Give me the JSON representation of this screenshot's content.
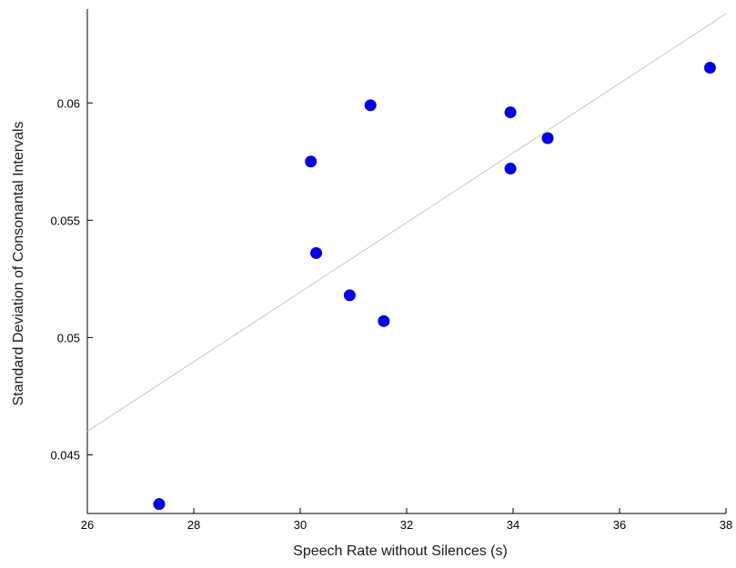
{
  "chart_data": {
    "type": "scatter",
    "title": "",
    "xlabel": "Speech Rate without Silences (s)",
    "ylabel": "Standard Deviation of Consonantal Intervals",
    "xlim": [
      26,
      38
    ],
    "ylim": [
      0.0425,
      0.064
    ],
    "xticks": [
      26,
      28,
      30,
      32,
      34,
      36,
      38
    ],
    "xtick_labels": [
      "26",
      "28",
      "30",
      "32",
      "34",
      "36",
      "38"
    ],
    "yticks": [
      0.045,
      0.05,
      0.055,
      0.06
    ],
    "ytick_labels": [
      "0.045",
      "0.05",
      "0.055",
      "0.06"
    ],
    "grid": false,
    "series": [
      {
        "points": [
          {
            "x": 27.35,
            "y": 0.0429
          },
          {
            "x": 30.2,
            "y": 0.0575
          },
          {
            "x": 30.3,
            "y": 0.0536
          },
          {
            "x": 30.93,
            "y": 0.0518
          },
          {
            "x": 31.32,
            "y": 0.0599
          },
          {
            "x": 31.57,
            "y": 0.0507
          },
          {
            "x": 33.95,
            "y": 0.0596
          },
          {
            "x": 33.95,
            "y": 0.0572
          },
          {
            "x": 34.65,
            "y": 0.0585
          },
          {
            "x": 37.7,
            "y": 0.0615
          }
        ]
      }
    ],
    "trend_line": {
      "x": [
        26,
        38
      ],
      "y": [
        0.046,
        0.0638
      ]
    },
    "colors": {
      "points": "#0000e0",
      "trend_line": "#c8c8c8",
      "axes": "#000000"
    }
  }
}
